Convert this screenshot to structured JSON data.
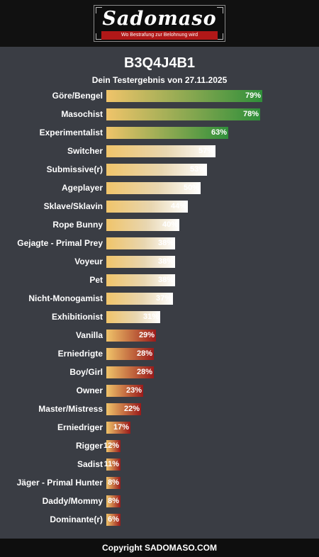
{
  "header": {
    "logo_text": "Sadomaso",
    "logo_tagline": "Wo Bestrafung zur Belohnung wird"
  },
  "result": {
    "title": "B3Q4J4B1",
    "subtitle": "Dein Testergebnis von 27.11.2025"
  },
  "colors": {
    "gradient_start": "#f0c46a",
    "high_end": "#2f8f3a",
    "mid_end": "#ffffff",
    "low_end": "#9a1a1a",
    "background": "#3a3d44"
  },
  "results": [
    {
      "label": "Göre/Bengel",
      "value": 79,
      "pct": "79%"
    },
    {
      "label": "Masochist",
      "value": 78,
      "pct": "78%"
    },
    {
      "label": "Experimentalist",
      "value": 63,
      "pct": "63%"
    },
    {
      "label": "Switcher",
      "value": 57,
      "pct": "57%"
    },
    {
      "label": "Submissive(r)",
      "value": 53,
      "pct": "53%"
    },
    {
      "label": "Ageplayer",
      "value": 50,
      "pct": "50%"
    },
    {
      "label": "Sklave/Sklavin",
      "value": 44,
      "pct": "44%"
    },
    {
      "label": "Rope Bunny",
      "value": 40,
      "pct": "40%"
    },
    {
      "label": "Gejagte - Primal Prey",
      "value": 38,
      "pct": "38%"
    },
    {
      "label": "Voyeur",
      "value": 38,
      "pct": "38%"
    },
    {
      "label": "Pet",
      "value": 38,
      "pct": "38%"
    },
    {
      "label": "Nicht-Monogamist",
      "value": 37,
      "pct": "37%"
    },
    {
      "label": "Exhibitionist",
      "value": 31,
      "pct": "31%"
    },
    {
      "label": "Vanilla",
      "value": 29,
      "pct": "29%"
    },
    {
      "label": "Erniedrigte",
      "value": 28,
      "pct": "28%"
    },
    {
      "label": "Boy/Girl",
      "value": 28,
      "pct": "28%"
    },
    {
      "label": "Owner",
      "value": 23,
      "pct": "23%"
    },
    {
      "label": "Master/Mistress",
      "value": 22,
      "pct": "22%"
    },
    {
      "label": "Erniedriger",
      "value": 17,
      "pct": "17%"
    },
    {
      "label": "Rigger",
      "value": 12,
      "pct": "12%"
    },
    {
      "label": "Sadist",
      "value": 11,
      "pct": "11%"
    },
    {
      "label": "Jäger - Primal Hunter",
      "value": 8,
      "pct": "8%"
    },
    {
      "label": "Daddy/Mommy",
      "value": 8,
      "pct": "8%"
    },
    {
      "label": "Dominante(r)",
      "value": 6,
      "pct": "6%"
    }
  ],
  "footer": {
    "copyright": "Copyright SADOMASO.COM"
  }
}
